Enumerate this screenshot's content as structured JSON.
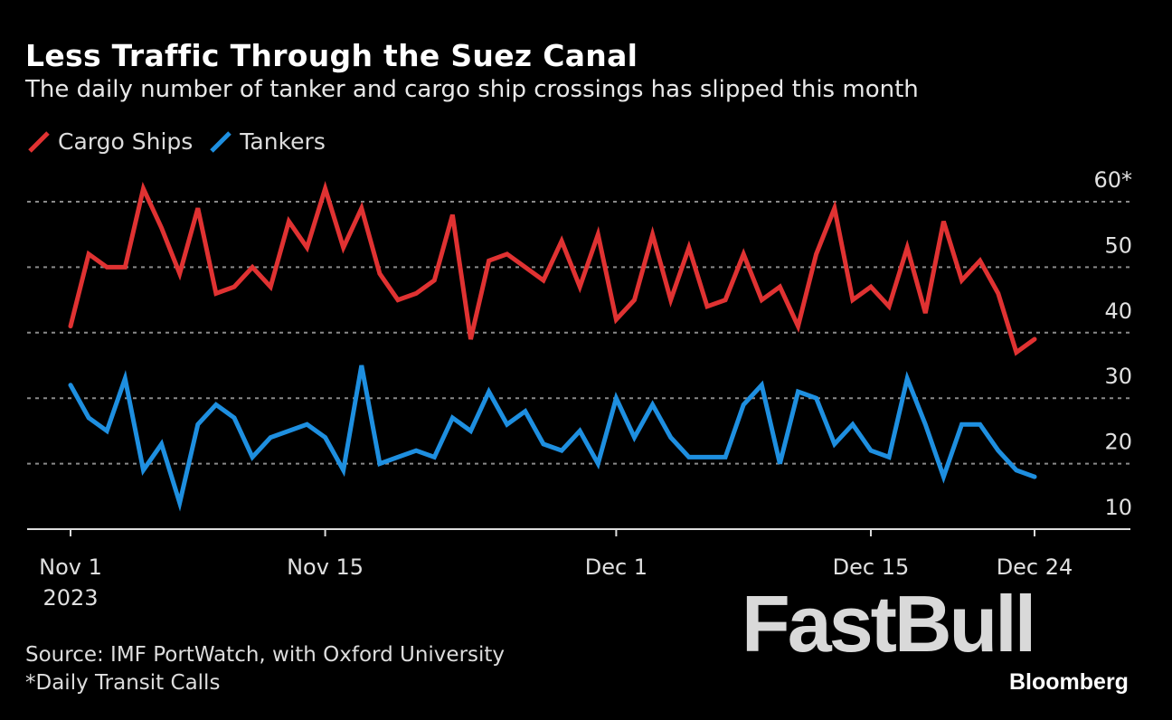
{
  "chart_data": {
    "type": "line",
    "title": "Less Traffic Through the Suez Canal",
    "subtitle": "The daily number of tanker and cargo ship crossings has slipped this month",
    "start_date": "2023-11-01",
    "end_date": "2023-12-24",
    "x_tick_labels": [
      {
        "date": "2023-11-01",
        "label": "Nov 1",
        "sublabel": "2023"
      },
      {
        "date": "2023-11-15",
        "label": "Nov 15"
      },
      {
        "date": "2023-12-01",
        "label": "Dec 1"
      },
      {
        "date": "2023-12-15",
        "label": "Dec 15"
      },
      {
        "date": "2023-12-24",
        "label": "Dec 24"
      }
    ],
    "y_ticks": [
      10,
      20,
      30,
      40,
      50,
      60
    ],
    "y_tick_labels": [
      "10",
      "20",
      "30",
      "40",
      "50",
      "60*"
    ],
    "ylim": [
      10,
      60
    ],
    "grid": true,
    "legend_position": "top-left",
    "series": [
      {
        "name": "Cargo Ships",
        "color": "#e03232",
        "values": [
          41,
          52,
          50,
          50,
          62,
          56,
          49,
          59,
          46,
          47,
          50,
          47,
          57,
          53,
          62,
          53,
          59,
          49,
          45,
          46,
          48,
          58,
          39,
          51,
          52,
          50,
          48,
          54,
          47,
          55,
          42,
          45,
          55,
          45,
          53,
          44,
          45,
          52,
          45,
          47,
          41,
          52,
          59,
          45,
          47,
          44,
          53,
          43,
          57,
          48,
          51,
          46,
          37,
          39
        ]
      },
      {
        "name": "Tankers",
        "color": "#1e8fe0",
        "values": [
          32,
          27,
          25,
          33,
          19,
          23,
          14,
          26,
          29,
          27,
          21,
          24,
          25,
          26,
          24,
          19,
          35,
          20,
          21,
          22,
          21,
          27,
          25,
          31,
          26,
          28,
          23,
          22,
          25,
          20,
          30,
          24,
          29,
          24,
          21,
          21,
          21,
          29,
          32,
          20,
          31,
          30,
          23,
          26,
          22,
          21,
          33,
          26,
          18,
          26,
          26,
          22,
          19,
          18
        ]
      }
    ]
  },
  "footer": {
    "source": "Source: IMF PortWatch, with Oxford University",
    "note": "*Daily Transit Calls"
  },
  "watermark": "FastBull",
  "brand": "Bloomberg"
}
